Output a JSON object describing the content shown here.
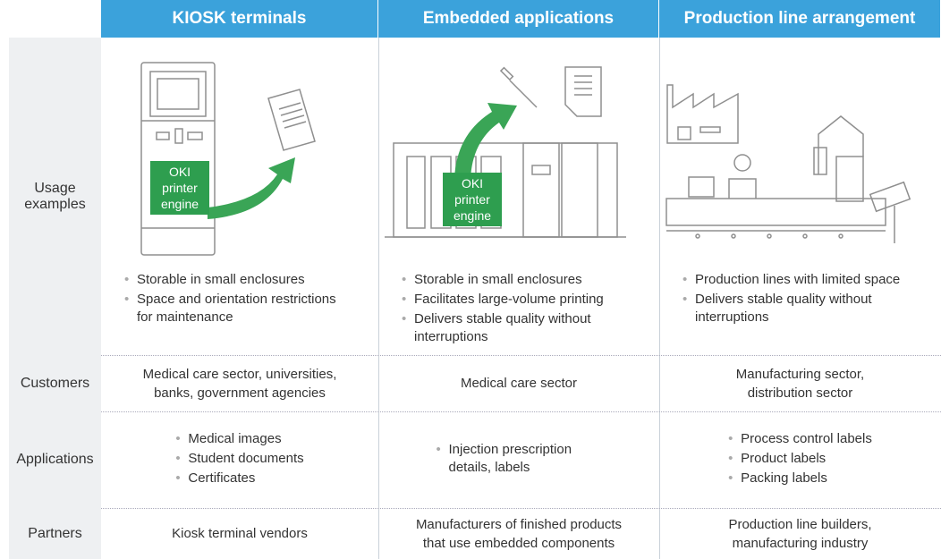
{
  "header": {
    "columns": [
      "KIOSK terminals",
      "Embedded applications",
      "Production line arrangement"
    ]
  },
  "illustrations": {
    "engine_labels": [
      "OKI printer engine",
      "OKI printer engine"
    ]
  },
  "rows": [
    {
      "label": "Usage examples",
      "cells": [
        {
          "bullets": [
            "Storable in small enclosures",
            "Space and orientation restrictions for maintenance"
          ]
        },
        {
          "bullets": [
            "Storable in small enclosures",
            "Facilitates large-volume printing",
            "Delivers stable quality without interruptions"
          ]
        },
        {
          "bullets": [
            "Production lines with limited space",
            "Delivers stable quality without interruptions"
          ]
        }
      ]
    },
    {
      "label": "Customers",
      "cells": [
        {
          "lines": [
            "Medical care sector, universities,",
            "banks, government agencies"
          ]
        },
        {
          "lines": [
            "Medical care sector"
          ]
        },
        {
          "lines": [
            "Manufacturing sector,",
            "distribution sector"
          ]
        }
      ]
    },
    {
      "label": "Applications",
      "cells": [
        {
          "bullets": [
            "Medical images",
            "Student documents",
            "Certificates"
          ]
        },
        {
          "bullets": [
            "Injection prescription details, labels"
          ]
        },
        {
          "bullets": [
            "Process control labels",
            "Product labels",
            "Packing labels"
          ]
        }
      ]
    },
    {
      "label": "Partners",
      "cells": [
        {
          "lines": [
            "Kiosk terminal vendors"
          ]
        },
        {
          "lines": [
            "Manufacturers of finished products",
            "that use embedded components"
          ]
        },
        {
          "lines": [
            "Production line builders,",
            "manufacturing industry"
          ]
        }
      ]
    }
  ]
}
